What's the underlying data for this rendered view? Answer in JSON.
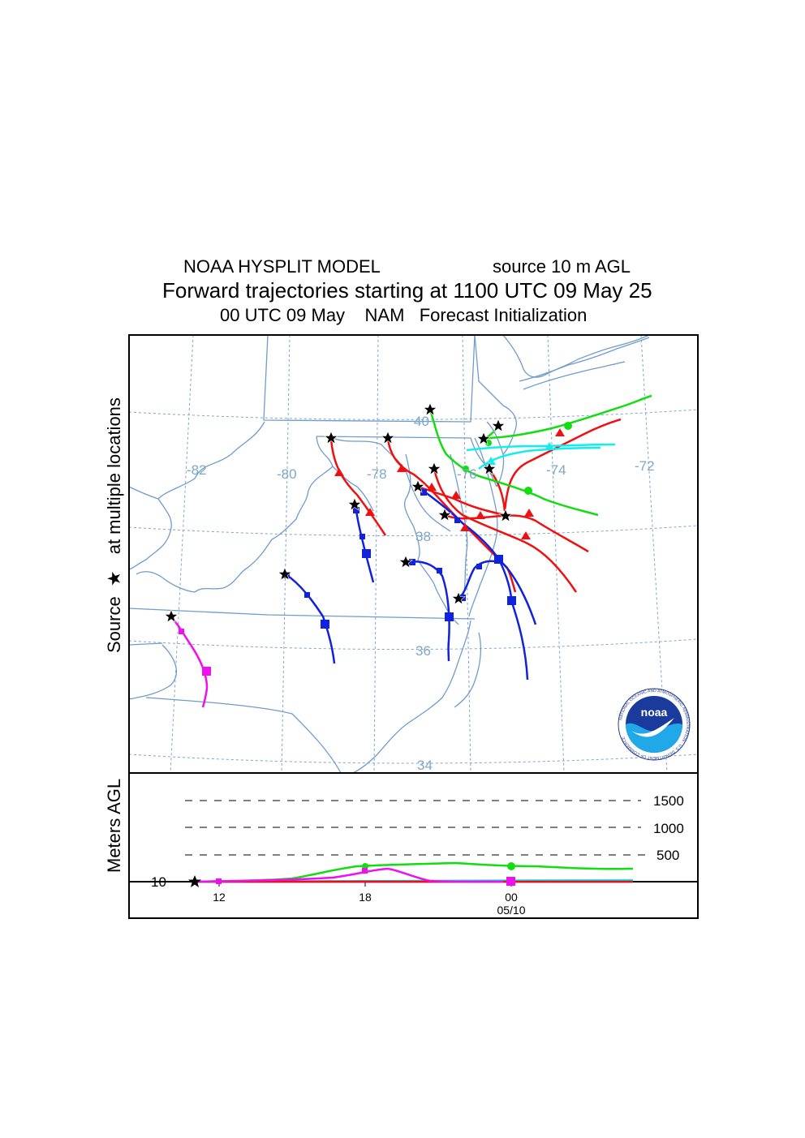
{
  "header": {
    "model": "NOAA HYSPLIT MODEL",
    "source": "source 10 m AGL",
    "title": "Forward trajectories starting at 1100 UTC 09 May 25",
    "subtitle": "00 UTC 09 May    NAM   Forecast Initialization"
  },
  "map": {
    "y_axis_label_source": "Source",
    "y_axis_label_rest": "at multiple locations",
    "longitude_labels": [
      "-82",
      "-80",
      "-78",
      "-76",
      "-74",
      "-72"
    ],
    "latitude_labels": [
      "40",
      "38",
      "36",
      "34"
    ],
    "line_color": "#6f9ccc",
    "grid_color": "#7fa6c8",
    "logo_text": "noaa",
    "logo_ring_text": "NATIONAL OCEANIC AND ATMOSPHERIC ADMINISTRATION · U.S. DEPARTMENT OF COMMERCE"
  },
  "height_panel": {
    "y_axis_label": "Meters AGL",
    "level_labels": [
      "1500",
      "1000",
      "500"
    ],
    "base_label": "10",
    "time_ticks": [
      "12",
      "18",
      "00"
    ],
    "date_label": "05/10"
  },
  "colors": {
    "red": "#ee1111",
    "blue": "#1122dd",
    "green": "#11dd11",
    "cyan": "#11eeee",
    "magenta": "#ee11ee",
    "source_marker": "#000000"
  },
  "trajectories": [
    {
      "color": "red",
      "icon": "triangle-icon"
    },
    {
      "color": "blue",
      "icon": "square-icon"
    },
    {
      "color": "green",
      "icon": "circle-icon"
    },
    {
      "color": "cyan",
      "icon": "triangle-icon"
    },
    {
      "color": "magenta",
      "icon": "square-icon"
    }
  ]
}
